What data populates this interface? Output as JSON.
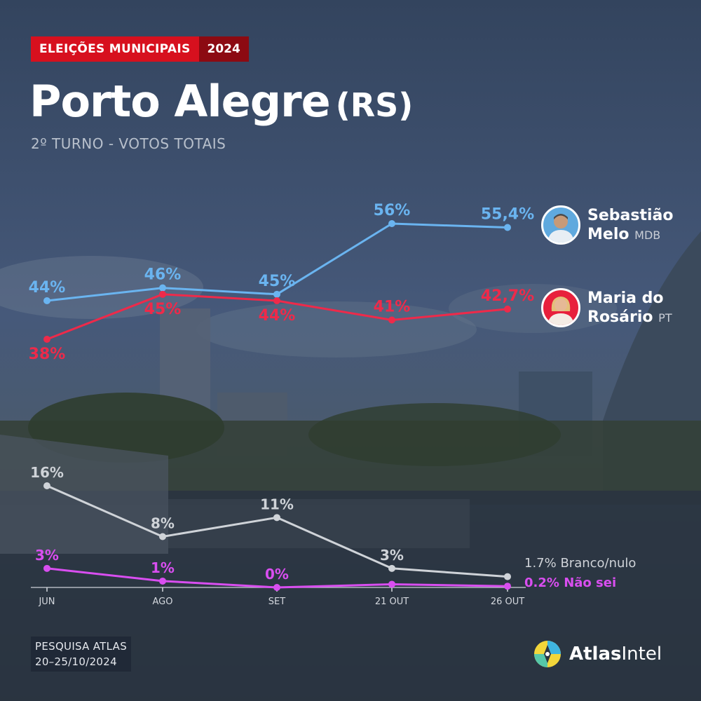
{
  "header": {
    "badge_label": "ELEIÇÕES MUNICIPAIS",
    "badge_year": "2024",
    "title_city": "Porto Alegre",
    "title_state": "(RS)",
    "subtitle": "2º TURNO - VOTOS TOTAIS"
  },
  "candidates": [
    {
      "name_line1": "Sebastião",
      "name_line2": "Melo",
      "party": "MDB",
      "color": "#6ab4f0",
      "avatar_icon": "man-portrait-icon"
    },
    {
      "name_line1": "Maria do",
      "name_line2": "Rosário",
      "party": "PT",
      "color": "#ee2a4a",
      "avatar_icon": "woman-portrait-icon"
    }
  ],
  "chart_data": {
    "type": "line",
    "categories": [
      "JUN",
      "AGO",
      "SET",
      "21 OUT",
      "26 OUT"
    ],
    "series": [
      {
        "name": "Sebastião Melo",
        "values": [
          44,
          46,
          45,
          56,
          55.4
        ],
        "labels": [
          "44%",
          "46%",
          "45%",
          "56%",
          "55,4%"
        ],
        "color": "#6ab4f0"
      },
      {
        "name": "Maria do Rosário",
        "values": [
          38,
          45,
          44,
          41,
          42.7
        ],
        "labels": [
          "38%",
          "45%",
          "44%",
          "41%",
          "42,7%"
        ],
        "color": "#ee2a4a"
      },
      {
        "name": "Branco/nulo",
        "values": [
          16,
          8,
          11,
          3,
          1.7
        ],
        "labels": [
          "16%",
          "8%",
          "11%",
          "3%",
          "1.7%"
        ],
        "color": "#cfd3d8"
      },
      {
        "name": "Não sei",
        "values": [
          3,
          1,
          0,
          0.5,
          0.2
        ],
        "labels": [
          "3%",
          "1%",
          "0%",
          "",
          "0.2%"
        ],
        "color": "#d94ef0"
      }
    ],
    "end_labels": [
      "Branco/nulo",
      "Não sei"
    ]
  },
  "footer": {
    "source_line1": "PESQUISA ATLAS",
    "source_line2": "20–25/10/2024",
    "brand_bold": "Atlas",
    "brand_rest": "Intel",
    "brand_icon": "atlas-compass-logo-icon"
  }
}
